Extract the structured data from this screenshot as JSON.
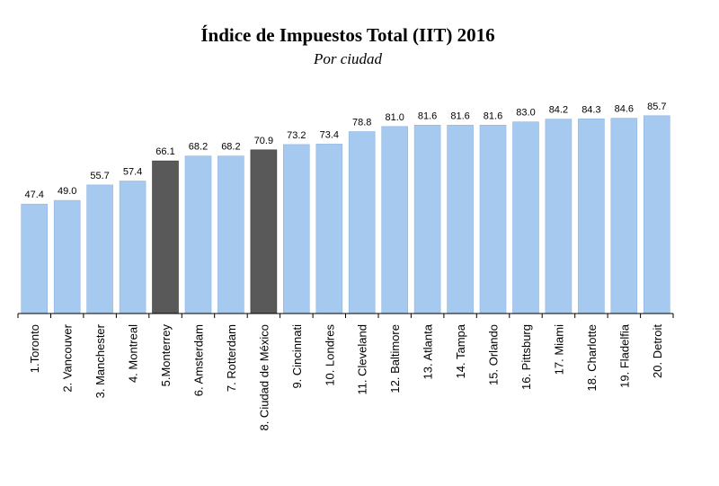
{
  "title": "Índice de Impuestos Total (IIT) 2016",
  "subtitle": "Por ciudad",
  "colors": {
    "bar": "#A6C9F0",
    "highlight": "#595959",
    "axis": "#000000",
    "label": "#000000"
  },
  "chart_data": {
    "type": "bar",
    "title": "Índice de Impuestos Total (IIT) 2016",
    "subtitle": "Por ciudad",
    "xlabel": "",
    "ylabel": "",
    "ylim": [
      0,
      90
    ],
    "grid": false,
    "legend": "none",
    "categories": [
      "1.Toronto",
      "2. Vancouver",
      "3. Manchester",
      "4. Montreal",
      "5.Monterrey",
      "6. Amsterdam",
      "7. Rotterdam",
      "8. Ciudad de México",
      "9. Cincinnati",
      "10. Londres",
      "11. Cleveland",
      "12. Baltimore",
      "13. Atlanta",
      "14. Tampa",
      "15. Orlando",
      "16. Pittsburg",
      "17. Miami",
      "18. Charlotte",
      "19. Fladelfia",
      "20. Detroit"
    ],
    "values": [
      47.4,
      49.0,
      55.7,
      57.4,
      66.1,
      68.2,
      68.2,
      70.9,
      73.2,
      73.4,
      78.8,
      81.0,
      81.6,
      81.6,
      81.6,
      83.0,
      84.2,
      84.3,
      84.6,
      85.7
    ],
    "value_labels": [
      "47.4",
      "49.0",
      "55.7",
      "57.4",
      "66.1",
      "68.2",
      "68.2",
      "70.9",
      "73.2",
      "73.4",
      "78.8",
      "81.0",
      "81.6",
      "81.6",
      "81.6",
      "83.0",
      "84.2",
      "84.3",
      "84.6",
      "85.7"
    ],
    "highlighted": [
      "5.Monterrey",
      "8. Ciudad de México"
    ]
  }
}
